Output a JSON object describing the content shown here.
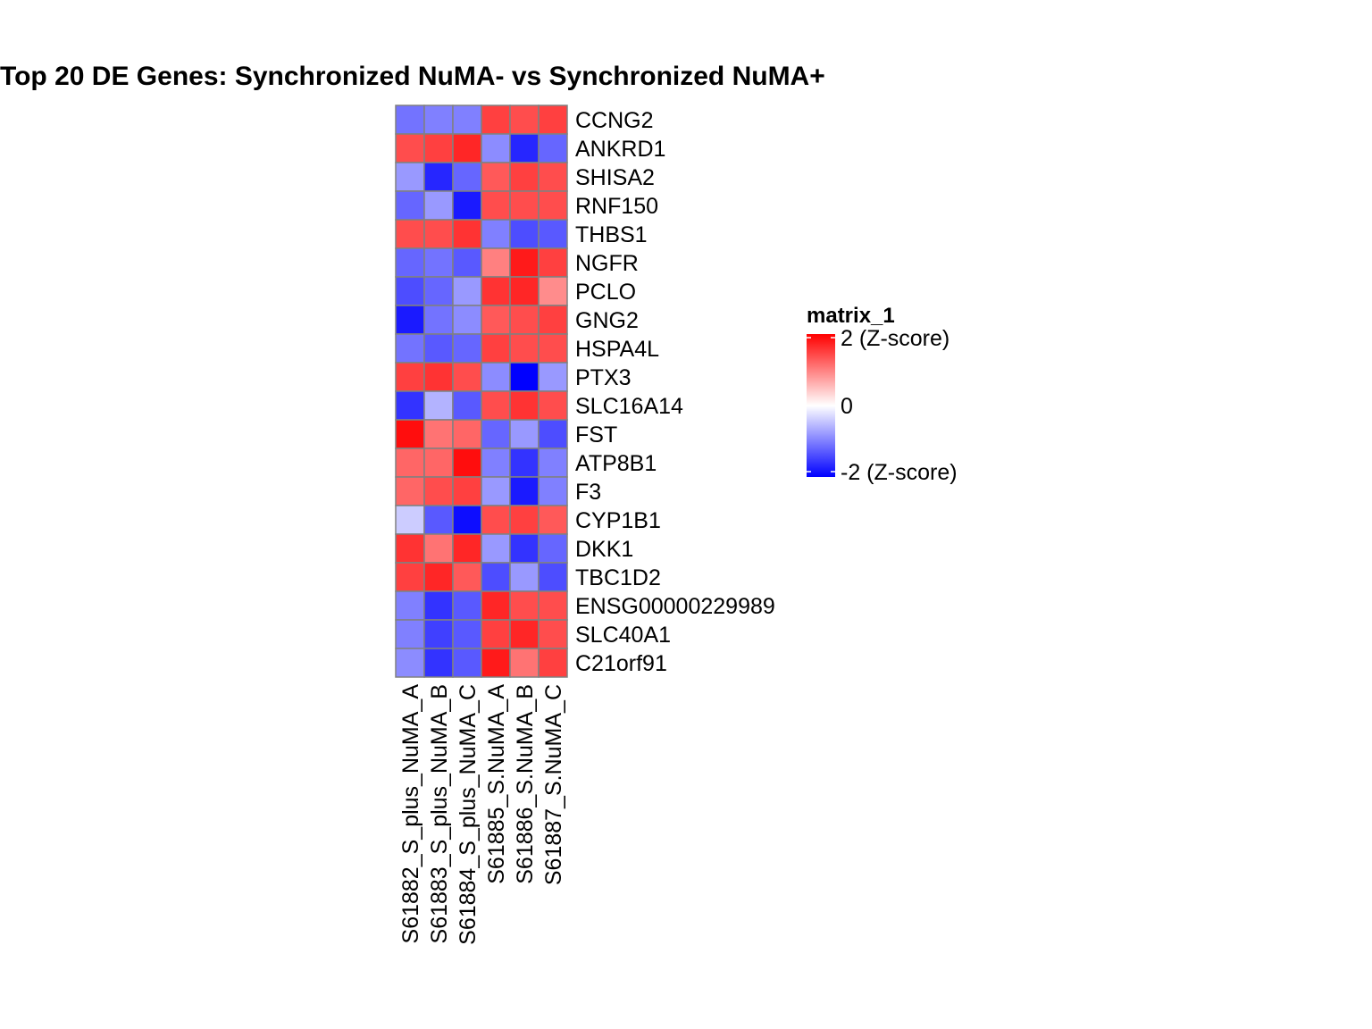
{
  "chart_data": {
    "type": "heatmap",
    "title": "Top 20 DE Genes: Synchronized NuMA-  vs  Synchronized NuMA+",
    "rows": [
      "CCNG2",
      "ANKRD1",
      "SHISA2",
      "RNF150",
      "THBS1",
      "NGFR",
      "PCLO",
      "GNG2",
      "HSPA4L",
      "PTX3",
      "SLC16A14",
      "FST",
      "ATP8B1",
      "F3",
      "CYP1B1",
      "DKK1",
      "TBC1D2",
      "ENSG00000229989",
      "SLC40A1",
      "C21orf91"
    ],
    "columns": [
      "S61882_S_plus_NuMA_A",
      "S61883_S_plus_NuMA_B",
      "S61884_S_plus_NuMA_C",
      "S61885_S.NuMA_A",
      "S61886_S.NuMA_B",
      "S61887_S.NuMA_C"
    ],
    "values": [
      [
        -1.1,
        -1.0,
        -1.0,
        1.5,
        1.4,
        1.5
      ],
      [
        1.4,
        1.5,
        1.7,
        -0.9,
        -1.7,
        -1.2
      ],
      [
        -0.8,
        -1.7,
        -1.2,
        1.3,
        1.5,
        1.4
      ],
      [
        -1.2,
        -0.8,
        -1.8,
        1.4,
        1.4,
        1.4
      ],
      [
        1.4,
        1.4,
        1.6,
        -1.0,
        -1.4,
        -1.3
      ],
      [
        -1.2,
        -1.1,
        -1.3,
        1.0,
        1.8,
        1.5
      ],
      [
        -1.4,
        -1.2,
        -0.8,
        1.6,
        1.7,
        0.9
      ],
      [
        -1.8,
        -1.1,
        -0.9,
        1.3,
        1.4,
        1.5
      ],
      [
        -1.1,
        -1.3,
        -1.2,
        1.5,
        1.4,
        1.4
      ],
      [
        1.5,
        1.6,
        1.4,
        -0.9,
        -2.0,
        -0.8
      ],
      [
        -1.6,
        -0.6,
        -1.3,
        1.4,
        1.6,
        1.4
      ],
      [
        1.9,
        1.1,
        1.2,
        -1.2,
        -0.8,
        -1.4
      ],
      [
        1.2,
        1.2,
        1.9,
        -1.0,
        -1.6,
        -1.0
      ],
      [
        1.2,
        1.4,
        1.5,
        -0.8,
        -1.8,
        -1.0
      ],
      [
        -0.4,
        -1.3,
        -1.9,
        1.4,
        1.5,
        1.3
      ],
      [
        1.6,
        1.1,
        1.7,
        -0.8,
        -1.6,
        -1.2
      ],
      [
        1.5,
        1.7,
        1.3,
        -1.4,
        -0.8,
        -1.4
      ],
      [
        -1.0,
        -1.6,
        -1.3,
        1.7,
        1.4,
        1.4
      ],
      [
        -1.0,
        -1.5,
        -1.3,
        1.5,
        1.7,
        1.4
      ],
      [
        -0.9,
        -1.6,
        -1.3,
        1.8,
        1.1,
        1.5
      ]
    ],
    "colorscale": {
      "low": "#0000ff",
      "mid": "#ffffff",
      "high": "#ff0000",
      "min": -2,
      "max": 2
    },
    "cell_border_color": "#808080",
    "legend": {
      "title": "matrix_1",
      "labels": [
        "2 (Z-score)",
        "0",
        "-2 (Z-score)"
      ],
      "placement": "right"
    }
  }
}
